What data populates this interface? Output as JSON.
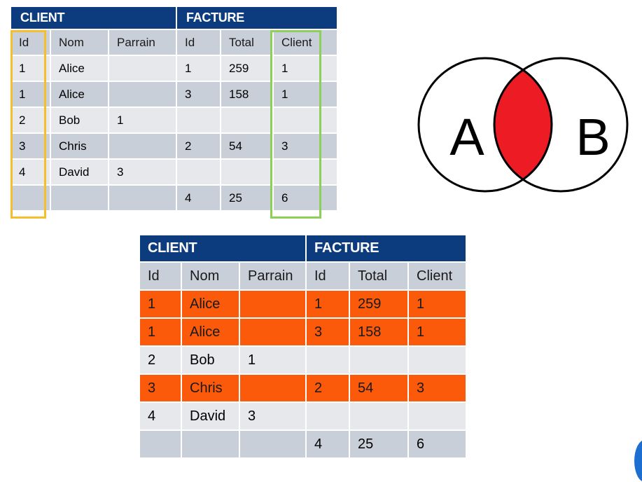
{
  "top_table": {
    "group_client": "CLIENT",
    "group_facture": "FACTURE",
    "headers": [
      "Id",
      "Nom",
      "Parrain",
      "Id",
      "Total",
      "Client"
    ],
    "rows": [
      [
        "1",
        "Alice",
        "",
        "1",
        "259",
        "1"
      ],
      [
        "1",
        "Alice",
        "",
        "3",
        "158",
        "1"
      ],
      [
        "2",
        "Bob",
        "1",
        "",
        "",
        ""
      ],
      [
        "3",
        "Chris",
        "",
        "2",
        "54",
        "3"
      ],
      [
        "4",
        "David",
        "3",
        "",
        "",
        ""
      ],
      [
        "",
        "",
        "",
        "4",
        "25",
        "6"
      ]
    ]
  },
  "venn": {
    "label_a": "A",
    "label_b": "B",
    "intersection_color": "#ed1c24"
  },
  "bottom_table": {
    "group_client": "CLIENT",
    "group_facture": "FACTURE",
    "headers": [
      "Id",
      "Nom",
      "Parrain",
      "Id",
      "Total",
      "Client"
    ],
    "rows": [
      [
        "1",
        "Alice",
        "",
        "1",
        "259",
        "1"
      ],
      [
        "1",
        "Alice",
        "",
        "3",
        "158",
        "1"
      ],
      [
        "2",
        "Bob",
        "1",
        "",
        "",
        ""
      ],
      [
        "3",
        "Chris",
        "",
        "2",
        "54",
        "3"
      ],
      [
        "4",
        "David",
        "3",
        "",
        "",
        ""
      ],
      [
        "",
        "",
        "",
        "4",
        "25",
        "6"
      ]
    ],
    "highlighted_rows": [
      0,
      1,
      3
    ],
    "highlight_color": "#fa5a0a"
  },
  "colors": {
    "header_blue": "#0d3c7e",
    "client_id_outline": "#f7be2b",
    "facture_client_outline": "#8cd05a"
  }
}
